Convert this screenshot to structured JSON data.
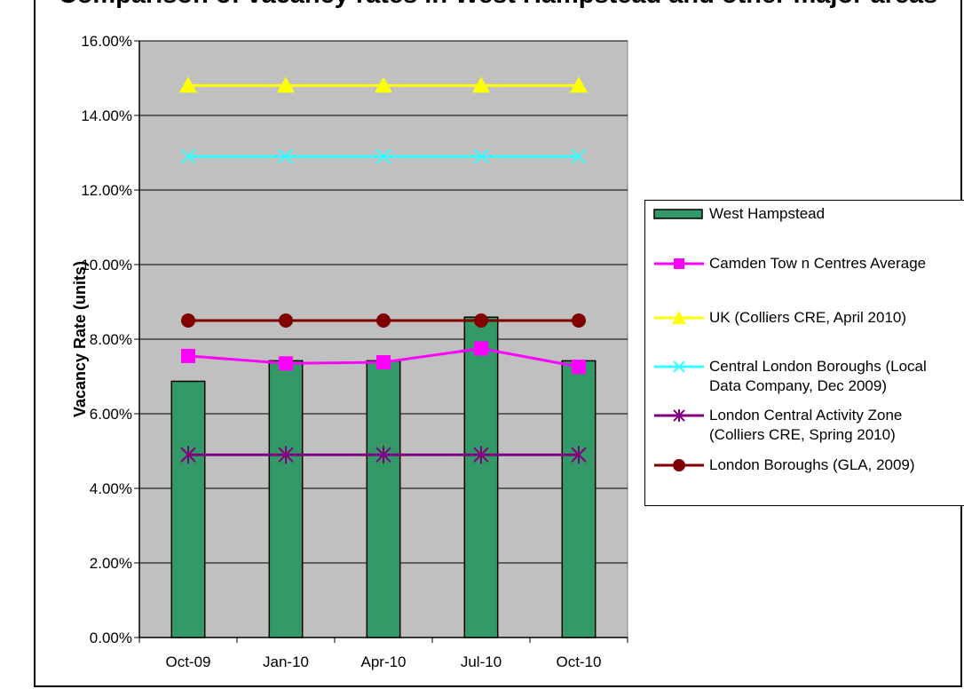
{
  "chart_data": {
    "type": "bar",
    "title": "Comparison of vacancy rates in West Hampstead and other major areas",
    "ylabel": "Vacancy Rate (units)",
    "xlabel": "",
    "categories": [
      "Oct-09",
      "Jan-10",
      "Apr-10",
      "Jul-10",
      "Oct-10"
    ],
    "ylim": [
      0,
      0.16
    ],
    "yticks": [
      "0.00%",
      "2.00%",
      "4.00%",
      "6.00%",
      "8.00%",
      "10.00%",
      "12.00%",
      "14.00%",
      "16.00%"
    ],
    "grid": true,
    "legend_position": "right",
    "plot_background": "#c0c0c0",
    "series": [
      {
        "name": "West Hampstead",
        "kind": "bar",
        "color": "#339966",
        "values": [
          0.0687,
          0.0742,
          0.0742,
          0.0859,
          0.0742
        ]
      },
      {
        "name": "Camden Tow n Centres Average",
        "kind": "line",
        "marker": "square",
        "color": "#ff00ff",
        "values": [
          0.0755,
          0.0735,
          0.0738,
          0.0775,
          0.0726
        ]
      },
      {
        "name": "UK (Colliers CRE, April 2010)",
        "kind": "line",
        "marker": "triangle",
        "color": "#ffff00",
        "values": [
          0.148,
          0.148,
          0.148,
          0.148,
          0.148
        ]
      },
      {
        "name": "Central London Boroughs (Local Data Company, Dec 2009)",
        "kind": "line",
        "marker": "x",
        "color": "#33ffff",
        "values": [
          0.129,
          0.129,
          0.129,
          0.129,
          0.129
        ]
      },
      {
        "name": "London Central Activity Zone (Colliers CRE, Spring 2010)",
        "kind": "line",
        "marker": "star",
        "color": "#800080",
        "values": [
          0.049,
          0.049,
          0.049,
          0.049,
          0.049
        ]
      },
      {
        "name": "London Boroughs (GLA, 2009)",
        "kind": "line",
        "marker": "circle",
        "color": "#800000",
        "values": [
          0.085,
          0.085,
          0.085,
          0.085,
          0.085
        ]
      }
    ]
  },
  "legend": {
    "items": [
      "West Hampstead",
      "Camden Tow n Centres Average",
      "UK (Colliers CRE, April 2010)",
      "Central London Boroughs (Local\nData Company, Dec 2009)",
      "London Central Activity Zone\n(Colliers CRE, Spring 2010)",
      "London Boroughs (GLA, 2009)"
    ]
  }
}
